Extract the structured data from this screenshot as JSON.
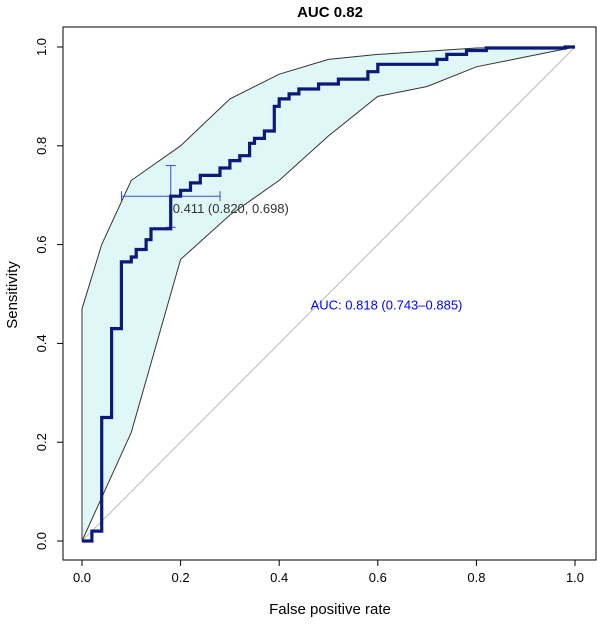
{
  "chart_data": {
    "type": "line",
    "title": "AUC 0.82",
    "xlabel": "False positive rate",
    "ylabel": "Sensitivity",
    "xlim": [
      0,
      1
    ],
    "ylim": [
      0,
      1
    ],
    "x_ticks": [
      "0.0",
      "0.2",
      "0.4",
      "0.6",
      "0.8",
      "1.0"
    ],
    "y_ticks": [
      "0.0",
      "0.2",
      "0.4",
      "0.6",
      "0.8",
      "1.0"
    ],
    "grid": false,
    "diagonal": [
      [
        0,
        0
      ],
      [
        1,
        1
      ]
    ],
    "colors": {
      "roc": "#0a1a7a",
      "ci_fill": "#e0f7f7",
      "ci_border": "#333333",
      "diagonal": "#bbbbbb",
      "auc_text": "#0000ff",
      "threshold_bars": "#3b4bd6"
    },
    "series": [
      {
        "values": [
          [
            0.0,
            0.0
          ],
          [
            0.02,
            0.0
          ],
          [
            0.02,
            0.02
          ],
          [
            0.04,
            0.02
          ],
          [
            0.04,
            0.25
          ],
          [
            0.06,
            0.25
          ],
          [
            0.06,
            0.43
          ],
          [
            0.08,
            0.43
          ],
          [
            0.08,
            0.565
          ],
          [
            0.1,
            0.565
          ],
          [
            0.1,
            0.575
          ],
          [
            0.11,
            0.575
          ],
          [
            0.11,
            0.59
          ],
          [
            0.13,
            0.59
          ],
          [
            0.13,
            0.61
          ],
          [
            0.14,
            0.61
          ],
          [
            0.14,
            0.632
          ],
          [
            0.18,
            0.632
          ],
          [
            0.18,
            0.698
          ],
          [
            0.2,
            0.698
          ],
          [
            0.2,
            0.71
          ],
          [
            0.22,
            0.71
          ],
          [
            0.22,
            0.725
          ],
          [
            0.24,
            0.725
          ],
          [
            0.24,
            0.74
          ],
          [
            0.28,
            0.74
          ],
          [
            0.28,
            0.755
          ],
          [
            0.3,
            0.755
          ],
          [
            0.3,
            0.77
          ],
          [
            0.32,
            0.77
          ],
          [
            0.32,
            0.78
          ],
          [
            0.34,
            0.78
          ],
          [
            0.34,
            0.805
          ],
          [
            0.35,
            0.805
          ],
          [
            0.35,
            0.815
          ],
          [
            0.37,
            0.815
          ],
          [
            0.37,
            0.83
          ],
          [
            0.39,
            0.83
          ],
          [
            0.39,
            0.88
          ],
          [
            0.4,
            0.88
          ],
          [
            0.4,
            0.895
          ],
          [
            0.42,
            0.895
          ],
          [
            0.42,
            0.905
          ],
          [
            0.44,
            0.905
          ],
          [
            0.44,
            0.915
          ],
          [
            0.48,
            0.915
          ],
          [
            0.48,
            0.925
          ],
          [
            0.52,
            0.925
          ],
          [
            0.52,
            0.935
          ],
          [
            0.58,
            0.935
          ],
          [
            0.58,
            0.95
          ],
          [
            0.6,
            0.95
          ],
          [
            0.6,
            0.965
          ],
          [
            0.72,
            0.965
          ],
          [
            0.72,
            0.975
          ],
          [
            0.74,
            0.975
          ],
          [
            0.74,
            0.985
          ],
          [
            0.78,
            0.985
          ],
          [
            0.78,
            0.993
          ],
          [
            0.82,
            0.993
          ],
          [
            0.82,
            0.998
          ],
          [
            0.98,
            0.998
          ],
          [
            0.98,
            1.0
          ],
          [
            1.0,
            1.0
          ]
        ]
      }
    ],
    "ci_band": {
      "upper": [
        [
          0.0,
          0.0
        ],
        [
          0.0,
          0.47
        ],
        [
          0.04,
          0.6
        ],
        [
          0.1,
          0.73
        ],
        [
          0.2,
          0.8
        ],
        [
          0.3,
          0.895
        ],
        [
          0.4,
          0.945
        ],
        [
          0.5,
          0.975
        ],
        [
          0.6,
          0.985
        ],
        [
          0.8,
          0.998
        ],
        [
          1.0,
          1.0
        ]
      ],
      "lower": [
        [
          0.0,
          0.0
        ],
        [
          0.1,
          0.22
        ],
        [
          0.2,
          0.57
        ],
        [
          0.3,
          0.66
        ],
        [
          0.4,
          0.73
        ],
        [
          0.5,
          0.82
        ],
        [
          0.6,
          0.9
        ],
        [
          0.7,
          0.92
        ],
        [
          0.8,
          0.96
        ],
        [
          0.9,
          0.98
        ],
        [
          1.0,
          1.0
        ]
      ]
    },
    "threshold_point": {
      "x": 0.18,
      "y": 0.698,
      "x_ci": [
        0.08,
        0.28
      ],
      "y_ci": [
        0.635,
        0.76
      ],
      "label": "0.411 (0.820, 0.698)"
    },
    "auc_annotation": {
      "text": "AUC: 0.818 (0.743–0.885)",
      "x": 0.5,
      "y": 0.485
    }
  }
}
